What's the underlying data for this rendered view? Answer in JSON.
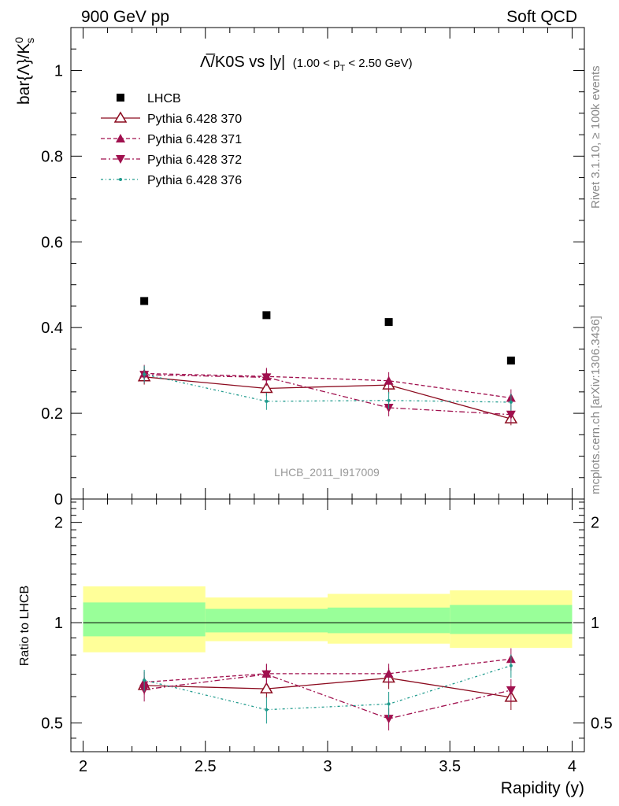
{
  "header": {
    "left": "900 GeV pp",
    "right": "Soft QCD"
  },
  "side_labels": {
    "rivet": "Rivet 3.1.10, ≥ 100k events",
    "mcplots": "mcplots.cern.ch [arXiv:1306.3436]"
  },
  "chart_data": [
    {
      "type": "scatter",
      "title": "Λ̅/K0S vs |y|",
      "title_suffix": "(1.00 < p",
      "title_suffix_sub": "T",
      "title_suffix_end": " < 2.50 GeV)",
      "ylabel": "bar{Λ}/K",
      "ylabel_sup": "0",
      "ylabel_sub": "s",
      "watermark": "LHCB_2011_I917009",
      "xlim": [
        1.95,
        4.05
      ],
      "ylim": [
        0,
        1.1
      ],
      "yticks": [
        {
          "v": 0,
          "label": "0"
        },
        {
          "v": 0.2,
          "label": "0.2"
        },
        {
          "v": 0.4,
          "label": "0.4"
        },
        {
          "v": 0.6,
          "label": "0.6"
        },
        {
          "v": 0.8,
          "label": "0.8"
        },
        {
          "v": 1.0,
          "label": "1"
        }
      ],
      "x": [
        2.25,
        2.75,
        3.25,
        3.75
      ],
      "series": [
        {
          "name": "LHCB",
          "color": "#000000",
          "marker": "square",
          "line": "none",
          "values": [
            0.462,
            0.429,
            0.413,
            0.323
          ],
          "errors": [
            0,
            0,
            0,
            0
          ]
        },
        {
          "name": "Pythia 6.428 370",
          "color": "#8b0a1e",
          "marker": "triangle-open",
          "line": "solid",
          "values": [
            0.285,
            0.258,
            0.266,
            0.187
          ],
          "errors": [
            0.018,
            0.018,
            0.02,
            0.015
          ]
        },
        {
          "name": "Pythia 6.428 371",
          "color": "#a0104e",
          "marker": "triangle-up",
          "line": "dashed",
          "values": [
            0.293,
            0.286,
            0.276,
            0.236
          ],
          "errors": [
            0.02,
            0.02,
            0.02,
            0.02
          ]
        },
        {
          "name": "Pythia 6.428 372",
          "color": "#a0104e",
          "marker": "triangle-down",
          "line": "dashdot",
          "values": [
            0.29,
            0.284,
            0.213,
            0.197
          ],
          "errors": [
            0.02,
            0.02,
            0.02,
            0.02
          ]
        },
        {
          "name": "Pythia 6.428 376",
          "color": "#1e9a8c",
          "marker": "dot",
          "line": "dashdotted",
          "values": [
            0.291,
            0.228,
            0.23,
            0.226
          ],
          "errors": [
            0.02,
            0.02,
            0.02,
            0.02
          ]
        }
      ]
    },
    {
      "type": "scatter",
      "ylabel": "Ratio to LHCB",
      "xlabel": "Rapidity (y)",
      "yscale": "log",
      "xlim": [
        1.95,
        4.05
      ],
      "ylim": [
        0.41,
        2.35
      ],
      "xticks": [
        {
          "v": 2,
          "label": "2"
        },
        {
          "v": 2.5,
          "label": "2.5"
        },
        {
          "v": 3,
          "label": "3"
        },
        {
          "v": 3.5,
          "label": "3.5"
        },
        {
          "v": 4,
          "label": "4"
        }
      ],
      "yticks": [
        {
          "v": 0.5,
          "label": "0.5"
        },
        {
          "v": 1,
          "label": "1"
        },
        {
          "v": 2,
          "label": "2"
        }
      ],
      "bins": [
        [
          2.0,
          2.5
        ],
        [
          2.5,
          3.0
        ],
        [
          3.0,
          3.5
        ],
        [
          3.5,
          4.0
        ]
      ],
      "band_outer": [
        [
          0.815,
          1.285
        ],
        [
          0.88,
          1.19
        ],
        [
          0.865,
          1.22
        ],
        [
          0.84,
          1.25
        ]
      ],
      "band_inner": [
        [
          0.91,
          1.15
        ],
        [
          0.935,
          1.1
        ],
        [
          0.93,
          1.11
        ],
        [
          0.925,
          1.13
        ]
      ],
      "x": [
        2.25,
        2.75,
        3.25,
        3.75
      ],
      "series": [
        {
          "name": "Pythia 6.428 370",
          "color": "#8b0a1e",
          "marker": "triangle-open",
          "line": "solid",
          "values": [
            0.648,
            0.633,
            0.682,
            0.597
          ],
          "errors": [
            0.04,
            0.04,
            0.05,
            0.05
          ]
        },
        {
          "name": "Pythia 6.428 371",
          "color": "#a0104e",
          "marker": "triangle-up",
          "line": "dashed",
          "values": [
            0.663,
            0.703,
            0.703,
            0.778
          ],
          "errors": [
            0.05,
            0.05,
            0.05,
            0.06
          ]
        },
        {
          "name": "Pythia 6.428 372",
          "color": "#a0104e",
          "marker": "triangle-down",
          "line": "dashdot",
          "values": [
            0.63,
            0.7,
            0.515,
            0.627
          ],
          "errors": [
            0.05,
            0.05,
            0.04,
            0.05
          ]
        },
        {
          "name": "Pythia 6.428 376",
          "color": "#1e9a8c",
          "marker": "dot",
          "line": "dashdotted",
          "values": [
            0.672,
            0.548,
            0.57,
            0.743
          ],
          "errors": [
            0.05,
            0.05,
            0.05,
            0.06
          ]
        }
      ]
    }
  ]
}
